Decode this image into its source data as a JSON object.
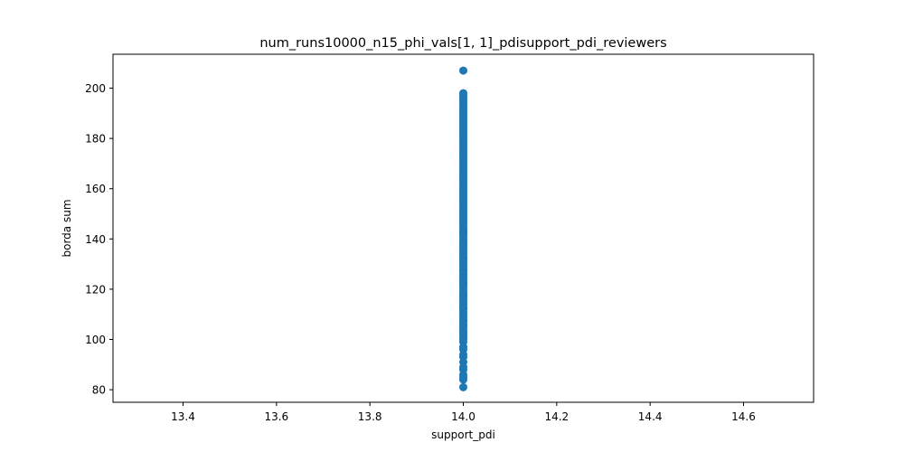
{
  "chart_data": {
    "type": "scatter",
    "title": "num_runs10000_n15_phi_vals[1, 1]_pdisupport_pdi_reviewers",
    "xlabel": "support_pdi",
    "ylabel": "borda sum",
    "xlim": [
      13.25,
      14.75
    ],
    "ylim": [
      75,
      213.5
    ],
    "xticks": [
      "13.4",
      "13.6",
      "13.8",
      "14.0",
      "14.2",
      "14.4",
      "14.6"
    ],
    "yticks": [
      "80",
      "100",
      "120",
      "140",
      "160",
      "180",
      "200"
    ],
    "grid": false,
    "legend": "none",
    "color": "#1f77b4",
    "series": [
      {
        "x": [
          14.0,
          14.0,
          14.0,
          14.0,
          14.0,
          14.0,
          14.0,
          14.0,
          14.0,
          14.0,
          14.0,
          14.0,
          14.0,
          14.0,
          14.0,
          14.0,
          14.0,
          14.0,
          14.0,
          14.0,
          14.0,
          14.0,
          14.0,
          14.0,
          14.0,
          14.0,
          14.0,
          14.0,
          14.0,
          14.0,
          14.0,
          14.0,
          14.0,
          14.0,
          14.0,
          14.0,
          14.0,
          14.0,
          14.0,
          14.0,
          14.0,
          14.0,
          14.0,
          14.0,
          14.0,
          14.0,
          14.0,
          14.0,
          14.0,
          14.0,
          14.0,
          14.0,
          14.0,
          14.0,
          14.0,
          14.0,
          14.0,
          14.0,
          14.0,
          14.0,
          14.0,
          14.0,
          14.0,
          14.0,
          14.0,
          14.0,
          14.0,
          14.0,
          14.0,
          14.0,
          14.0,
          14.0,
          14.0,
          14.0,
          14.0,
          14.0,
          14.0,
          14.0,
          14.0,
          14.0,
          14.0,
          14.0,
          14.0,
          14.0,
          14.0,
          14.0,
          14.0,
          14.0,
          14.0,
          14.0,
          14.0,
          14.0,
          14.0,
          14.0,
          14.0,
          14.0,
          14.0,
          14.0,
          14.0,
          14.0,
          14.0,
          14.0,
          14.0,
          14.0,
          14.0,
          14.0,
          14.0,
          14.0,
          14.0,
          14.0,
          14.0,
          14.0,
          14.0,
          14.0,
          14.0,
          14.0,
          14.0,
          14.0,
          14.0,
          14.0,
          14.0
        ],
        "y": [
          81,
          84,
          85,
          86,
          88,
          89,
          91,
          93,
          94,
          96,
          97,
          99,
          100,
          101,
          102,
          103,
          104,
          105,
          106,
          107,
          108,
          109,
          110,
          111,
          112,
          113,
          114,
          115,
          116,
          117,
          118,
          119,
          120,
          121,
          122,
          123,
          124,
          125,
          126,
          127,
          128,
          129,
          130,
          131,
          132,
          133,
          134,
          135,
          136,
          137,
          138,
          139,
          140,
          141,
          142,
          143,
          144,
          145,
          146,
          147,
          148,
          149,
          150,
          151,
          152,
          153,
          154,
          155,
          156,
          157,
          158,
          159,
          160,
          161,
          162,
          163,
          164,
          165,
          166,
          167,
          168,
          169,
          170,
          171,
          172,
          173,
          174,
          175,
          176,
          177,
          178,
          179,
          180,
          181,
          182,
          183,
          184,
          185,
          186,
          187,
          188,
          189,
          190,
          191,
          192,
          193,
          194,
          195,
          196,
          197,
          198,
          207,
          102.5,
          107.5,
          112.5,
          117.5,
          122.5,
          127.5,
          132.5,
          137.5,
          142.5
        ]
      }
    ]
  }
}
